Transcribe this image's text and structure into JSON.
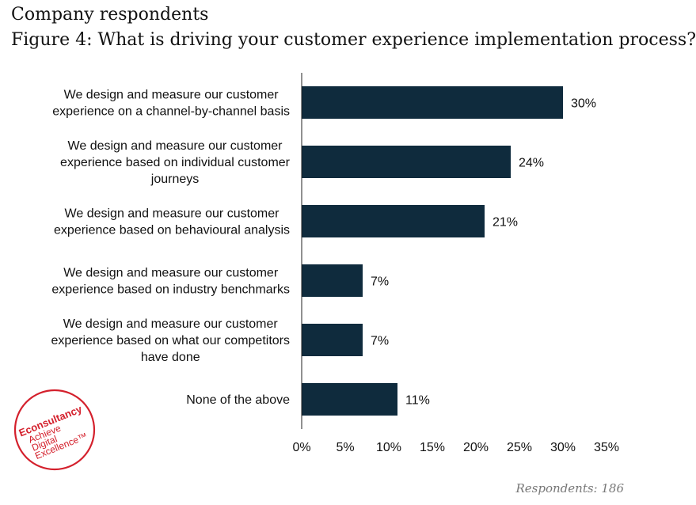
{
  "header": {
    "subtitle": "Company respondents",
    "title": "Figure 4: What is driving your customer experience implementation process?"
  },
  "footnote": "Respondents: 186",
  "logo": {
    "brand": "Econsultancy",
    "tagline": [
      "Achieve",
      "Digital",
      "Excellence"
    ],
    "trademark": "™",
    "color": "#d4202c"
  },
  "colors": {
    "bar": "#0f2b3d",
    "axis": "#222222",
    "text": "#111111"
  },
  "chart_data": {
    "type": "bar",
    "orientation": "horizontal",
    "categories": [
      [
        "We design and measure our customer",
        "experience on a channel-by-channel basis"
      ],
      [
        "We design and measure our customer",
        "experience based on individual customer",
        "journeys"
      ],
      [
        "We design and measure our customer",
        "experience based on behavioural analysis"
      ],
      [
        "We design and measure our customer",
        "experience based on industry benchmarks"
      ],
      [
        "We design and measure our customer",
        "experience based on what our competitors",
        "have done"
      ],
      [
        "None of the above"
      ]
    ],
    "values": [
      30,
      24,
      21,
      7,
      7,
      11
    ],
    "value_labels": [
      "30%",
      "24%",
      "21%",
      "7%",
      "7%",
      "11%"
    ],
    "xlim": [
      0,
      35
    ],
    "xticks": [
      "0%",
      "5%",
      "10%",
      "15%",
      "20%",
      "25%",
      "30%",
      "35%"
    ],
    "grid": false,
    "legend": "none"
  }
}
